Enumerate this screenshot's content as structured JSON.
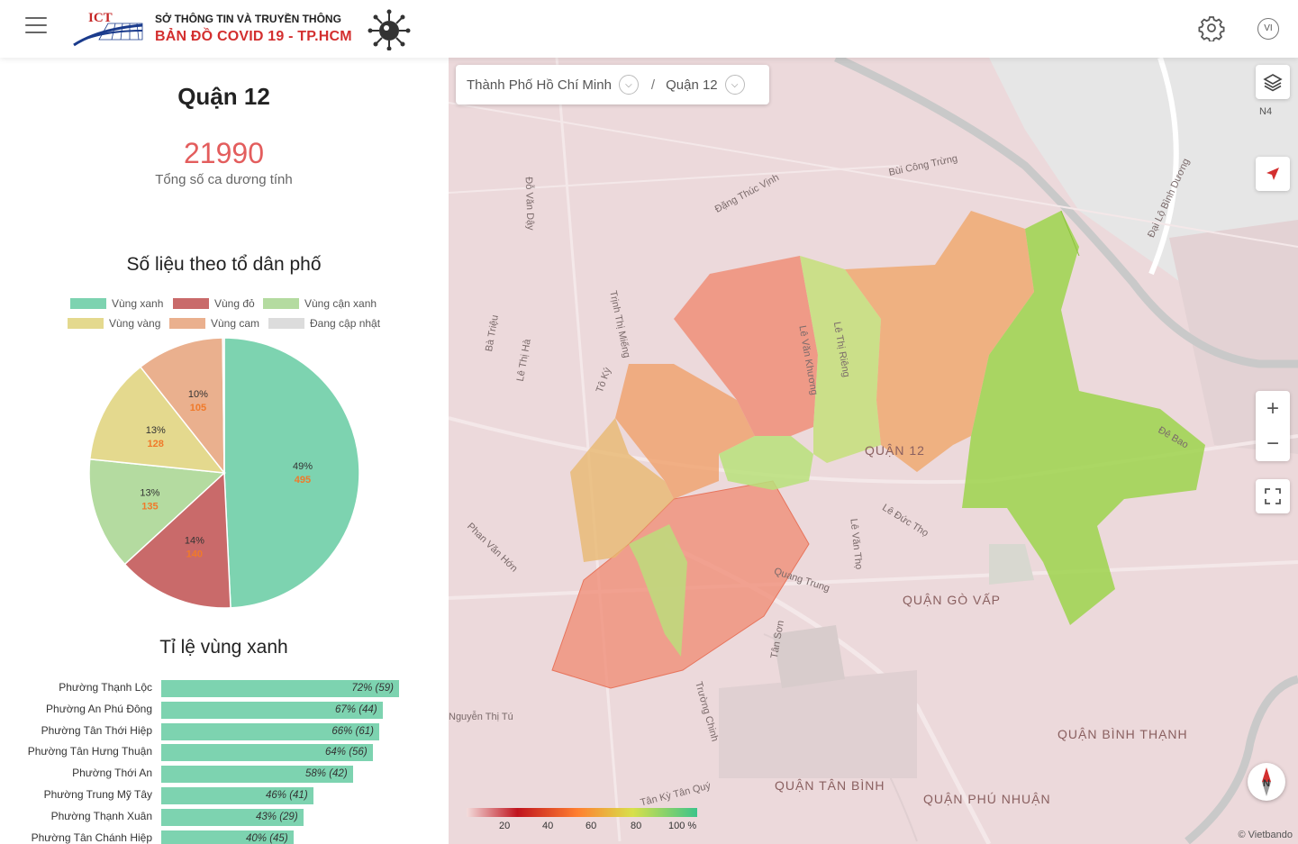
{
  "header": {
    "brand_top": "SỞ THÔNG TIN VÀ TRUYỀN THÔNG",
    "brand_main": "BẢN ĐỒ  COVID 19 - TP.HCM",
    "logo_text": "ICT",
    "lang": "VI",
    "icons": [
      "menu-icon",
      "ict-logo",
      "virus-icon",
      "gear-icon",
      "language-icon"
    ]
  },
  "summary": {
    "district": "Quận 12",
    "total_cases": "21990",
    "total_label": "Tổng số ca dương tính"
  },
  "pie_section": {
    "title": "Số liệu theo tổ dân phố",
    "legend": [
      {
        "label": "Vùng xanh",
        "color": "#7dd3b0"
      },
      {
        "label": "Vùng đỏ",
        "color": "#c96a6a"
      },
      {
        "label": "Vùng cận xanh",
        "color": "#b4dba0"
      },
      {
        "label": "Vùng vàng",
        "color": "#e4d98e"
      },
      {
        "label": "Vùng cam",
        "color": "#eab08e"
      },
      {
        "label": "Đang cập nhật",
        "color": "#dcdcdc"
      }
    ]
  },
  "chart_data": {
    "type": "pie",
    "slices": [
      {
        "label": "Vùng xanh",
        "percent": "49%",
        "count": 495,
        "color": "#7dd3b0"
      },
      {
        "label": "Vùng đỏ",
        "percent": "14%",
        "count": 140,
        "color": "#c96a6a"
      },
      {
        "label": "Vùng cận xanh",
        "percent": "13%",
        "count": 135,
        "color": "#b4dba0"
      },
      {
        "label": "Vùng vàng",
        "percent": "13%",
        "count": 128,
        "color": "#e4d98e"
      },
      {
        "label": "Vùng cam",
        "percent": "10%",
        "count": 105,
        "color": "#eab08e"
      },
      {
        "label": "Đang cập nhật",
        "percent": "",
        "count": 2,
        "color": "#dcdcdc"
      }
    ]
  },
  "bar_section": {
    "title": "Tỉ lệ vùng xanh",
    "rows": [
      {
        "name": "Phường Thạnh Lộc",
        "value": 72,
        "text": "72% (59)"
      },
      {
        "name": "Phường An Phú Đông",
        "value": 67,
        "text": "67% (44)"
      },
      {
        "name": "Phường Tân Thới Hiệp",
        "value": 66,
        "text": "66% (61)"
      },
      {
        "name": "Phường Tân Hưng Thuận",
        "value": 64,
        "text": "64% (56)"
      },
      {
        "name": "Phường Thới An",
        "value": 58,
        "text": "58% (42)"
      },
      {
        "name": "Phường Trung Mỹ Tây",
        "value": 46,
        "text": "46% (41)"
      },
      {
        "name": "Phường Thạnh Xuân",
        "value": 43,
        "text": "43% (29)"
      },
      {
        "name": "Phường Tân Chánh Hiệp",
        "value": 40,
        "text": "40% (45)"
      }
    ]
  },
  "map": {
    "breadcrumb_city": "Thành Phố Hồ Chí Minh",
    "breadcrumb_sep": "/",
    "breadcrumb_district": "Quận 12",
    "compass_n": "N4",
    "zoom_in": "+",
    "zoom_out": "−",
    "colorbar_ticks": [
      "20",
      "40",
      "60",
      "80",
      "100 %"
    ],
    "credit": "© Vietbando",
    "labels": {
      "quan12": "QUẬN 12",
      "govap": "QUẬN GÒ VẤP",
      "binhthanh": "QUẬN BÌNH THẠNH",
      "tanbinh": "QUẬN TÂN BÌNH",
      "phunhuan": "QUẬN PHÚ NHUẬN",
      "r1": "Bùi Công Trừng",
      "r2": "Đặng Thúc Vịnh",
      "r3": "Quang Trung",
      "r4": "Lê Đức Thọ",
      "r5": "Phan Văn Hớn",
      "r6": "Trường Chinh",
      "r7": "Tân Kỳ Tân Quý",
      "r8": "Đại Lộ Bình Dương",
      "r9": "Lê Văn Khương",
      "r10": "Lê Thị Riêng",
      "r11": "Trịnh Thị Miếng",
      "r12": "Tô Ký",
      "r13": "Lê Thị Hà",
      "r14": "Bà Triệu",
      "r15": "Đỗ Văn Dậy",
      "r16": "Đê Bao",
      "r17": "Lê Văn Thọ",
      "r18": "Tân Sơn",
      "r19": "Nguyễn Thị Tú"
    }
  }
}
